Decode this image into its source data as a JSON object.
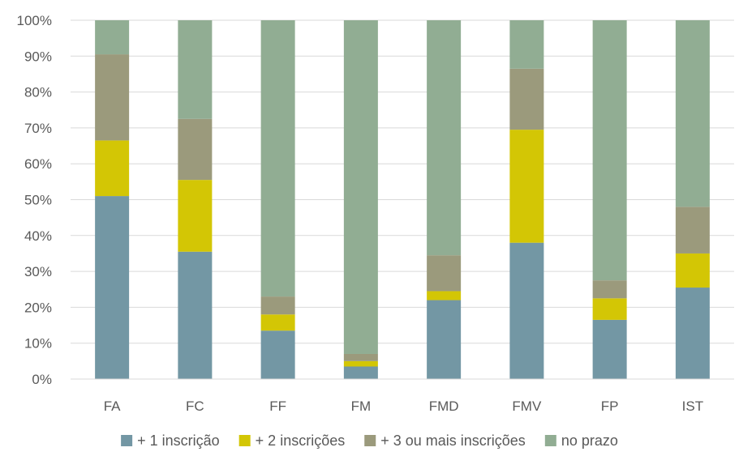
{
  "chart_data": {
    "type": "bar",
    "stacked": true,
    "percent_stacked": true,
    "categories": [
      "FA",
      "FC",
      "FF",
      "FM",
      "FMD",
      "FMV",
      "FP",
      "IST"
    ],
    "series": [
      {
        "name": "+ 1 inscrição",
        "color": "#7397A4",
        "values": [
          51,
          35.5,
          13.5,
          3.5,
          22,
          38,
          16.5,
          25.5
        ]
      },
      {
        "name": "+ 2 inscrições",
        "color": "#D3C605",
        "values": [
          15.5,
          20,
          4.5,
          1.5,
          2.5,
          31.5,
          6,
          9.5
        ]
      },
      {
        "name": "+ 3 ou mais inscrições",
        "color": "#9B9A7C",
        "values": [
          24,
          17,
          5,
          2,
          10,
          17,
          5,
          13
        ]
      },
      {
        "name": "no prazo",
        "color": "#91AD93",
        "values": [
          9.5,
          27.5,
          77,
          93,
          65.5,
          13.5,
          72.5,
          52
        ]
      }
    ],
    "y_ticks": [
      "0%",
      "10%",
      "20%",
      "30%",
      "40%",
      "50%",
      "60%",
      "70%",
      "80%",
      "90%",
      "100%"
    ],
    "ylim": [
      0,
      100
    ],
    "grid": true,
    "legend_position": "bottom"
  }
}
